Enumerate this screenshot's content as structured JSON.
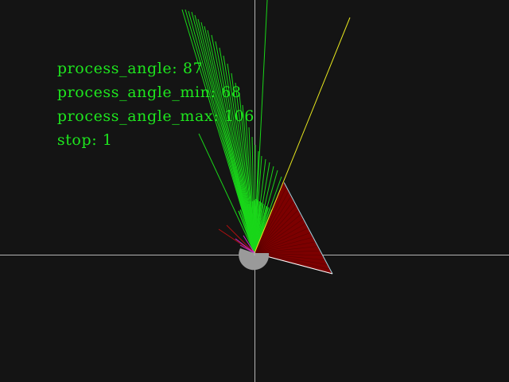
{
  "colors": {
    "background": "#141414",
    "crosshair": "#b4b4b4",
    "hud_text": "#1ee61e",
    "fan_green": "#19d619",
    "sector_red": "#7c0000",
    "sector_edge_light": "#9fd4e0",
    "sector_edge_white": "#ffffff",
    "yellow_ray": "#e6e61e",
    "robot_body": "#9a9a9a",
    "magenta_rays": "#cc2ccc",
    "dark_red_rays": "#b01010"
  },
  "hud": {
    "lines": [
      {
        "key": "process_angle",
        "value": "87"
      },
      {
        "key": "process_angle_min",
        "value": "68"
      },
      {
        "key": "process_angle_max",
        "value": "106"
      },
      {
        "key": "stop",
        "value": "1"
      }
    ]
  },
  "scan": {
    "process_angle": 87,
    "process_angle_min": 68,
    "process_angle_max": 106,
    "stop": 1
  }
}
